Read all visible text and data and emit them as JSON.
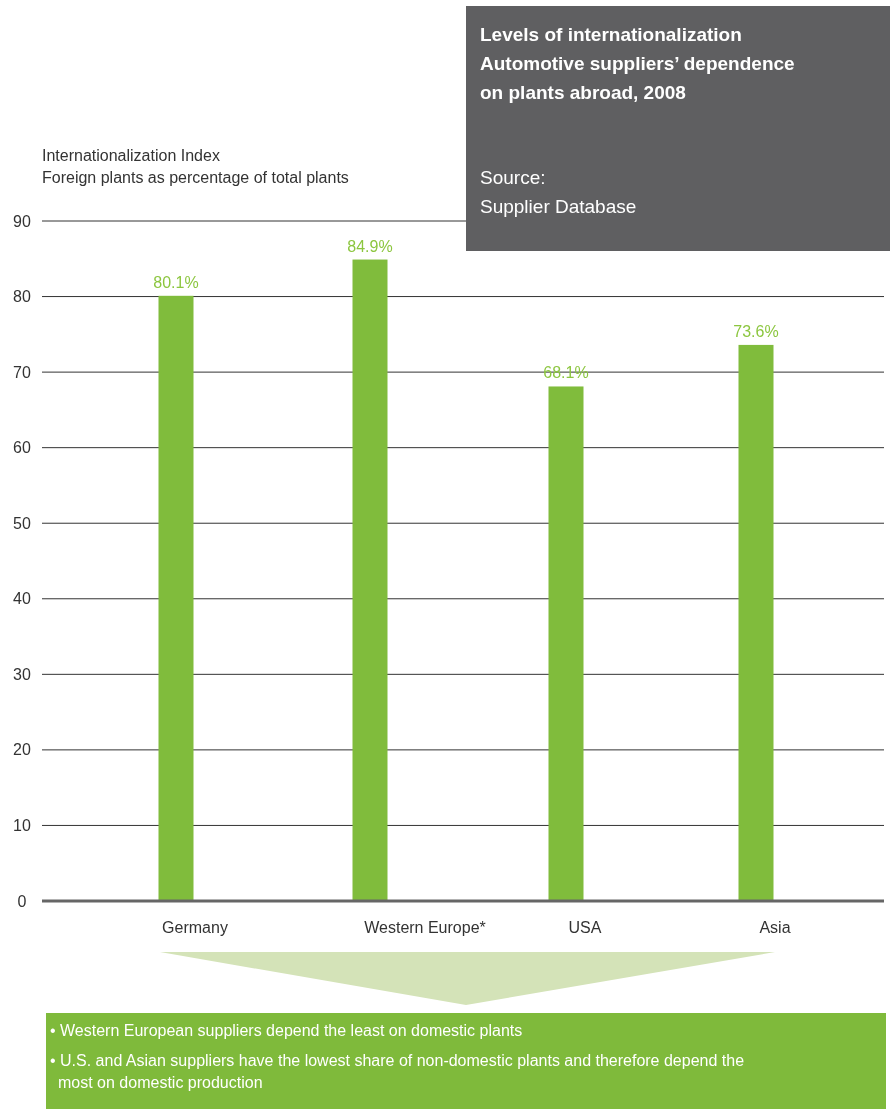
{
  "chart_data": {
    "type": "bar",
    "title": "Levels of internationalization",
    "subtitle": "Automotive suppliers’ dependence on plants abroad, 2008",
    "ylabel": "Internationalization Index\nForeign plants as percentage of total plants",
    "categories": [
      "Germany",
      "Western Europe*",
      "USA",
      "Asia"
    ],
    "values": [
      80.1,
      84.9,
      68.1,
      73.6
    ],
    "color": "#80bc3c",
    "value_labels": [
      "80.1%",
      "84.9%",
      "68.1%",
      "73.6%"
    ],
    "ylim": [
      0,
      90
    ],
    "yticks": [
      0,
      10,
      20,
      30,
      40,
      50,
      60,
      70,
      80,
      90
    ],
    "grid": "y",
    "annotations": [
      "Source:\nSupplier Database",
      "• Western European suppliers depend the least on domestic plants",
      "• U.S. and Asian suppliers have the lowest share of non-domestic plants and therefore depend the most on domestic production"
    ]
  }
}
